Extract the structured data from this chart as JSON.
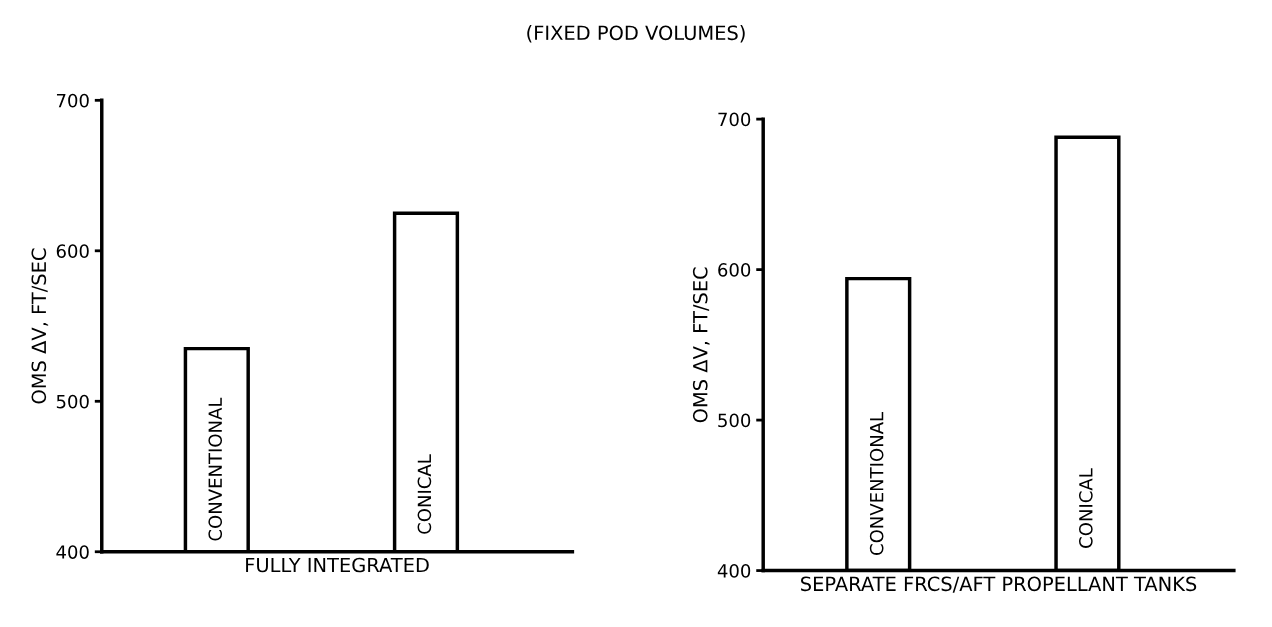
{
  "chart_data": [
    {
      "type": "bar",
      "title": "(FIXED POD VOLUMES)",
      "xlabel": "FULLY INTEGRATED",
      "ylabel": "OMS ΔV, FT/SEC",
      "categories": [
        "CONVENTIONAL",
        "CONICAL"
      ],
      "values": [
        535,
        625
      ],
      "color": "#ffffff",
      "ylim": [
        400,
        700
      ],
      "yticks": [
        400,
        500,
        600,
        700
      ],
      "grid": false
    },
    {
      "type": "bar",
      "xlabel": "SEPARATE FRCS/AFT PROPELLANT TANKS",
      "ylabel": "OMS ΔV, FT/SEC",
      "categories": [
        "CONVENTIONAL",
        "CONICAL"
      ],
      "values": [
        594,
        688
      ],
      "color": "#ffffff",
      "ylim": [
        400,
        700
      ],
      "yticks": [
        400,
        500,
        600,
        700
      ],
      "grid": false
    }
  ]
}
